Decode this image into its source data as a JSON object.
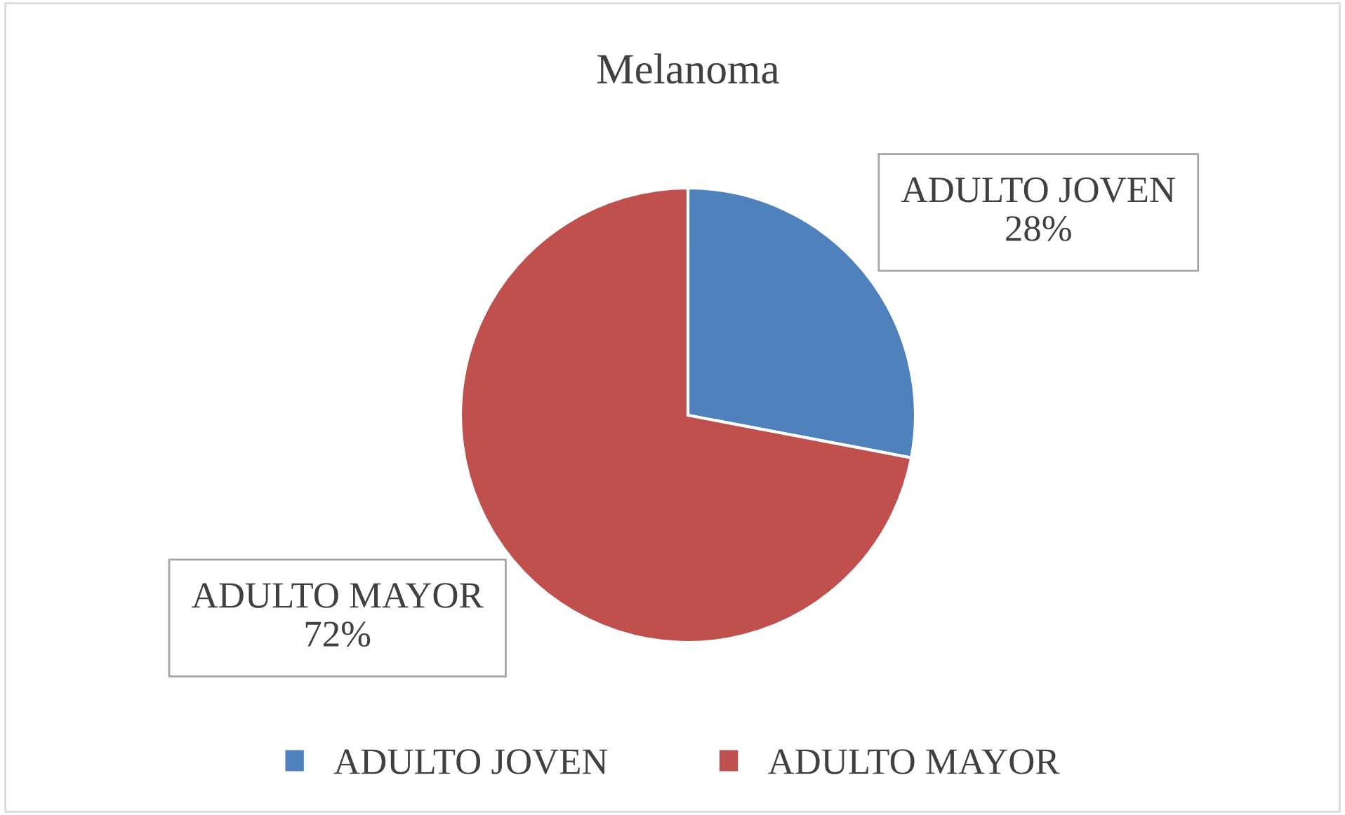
{
  "chart_data": {
    "type": "pie",
    "title": "Melanoma",
    "categories": [
      "ADULTO JOVEN",
      "ADULTO MAYOR"
    ],
    "values": [
      28,
      72
    ],
    "colors": [
      "#4f81bd",
      "#c0504d"
    ],
    "value_labels": [
      "28%",
      "72%"
    ],
    "legend": "bottom"
  }
}
